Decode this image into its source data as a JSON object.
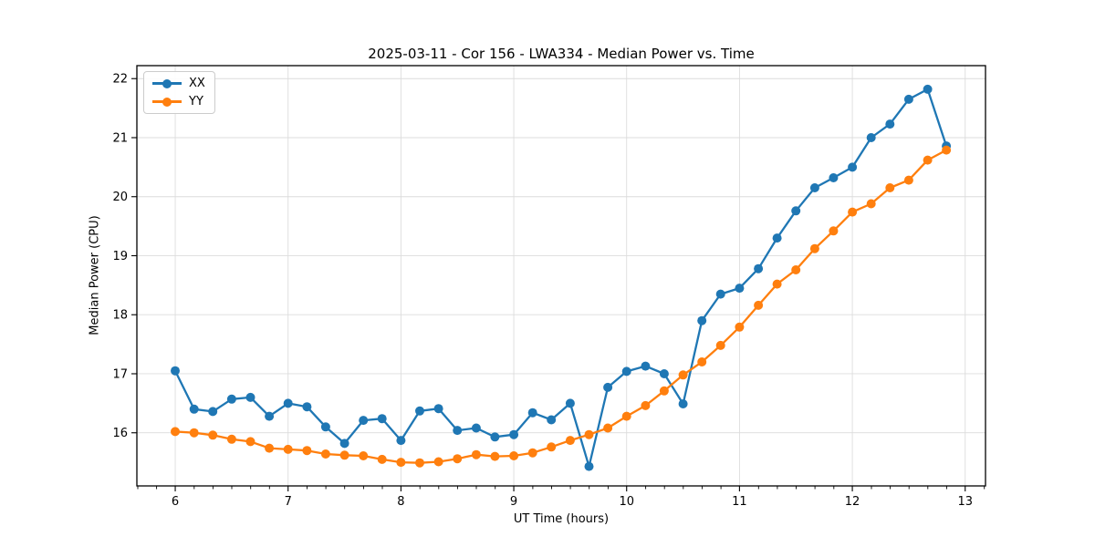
{
  "chart_data": {
    "type": "line",
    "title": "2025-03-11 - Cor 156 - LWA334 - Median Power vs. Time",
    "xlabel": "UT Time (hours)",
    "ylabel": "Median Power (CPU)",
    "grid": true,
    "grid_color": "#dcdcdc",
    "legend_position": "upper-left",
    "xlim": [
      5.66,
      13.18
    ],
    "ylim": [
      15.1,
      22.22
    ],
    "xticks": [
      6,
      7,
      8,
      9,
      10,
      11,
      12,
      13
    ],
    "yticks": [
      16,
      17,
      18,
      19,
      20,
      21,
      22
    ],
    "minor_xtick_step": 0.1667,
    "x": [
      6.0,
      6.167,
      6.333,
      6.5,
      6.667,
      6.833,
      7.0,
      7.167,
      7.333,
      7.5,
      7.667,
      7.833,
      8.0,
      8.167,
      8.333,
      8.5,
      8.667,
      8.833,
      9.0,
      9.167,
      9.333,
      9.5,
      9.667,
      9.833,
      10.0,
      10.167,
      10.333,
      10.5,
      10.667,
      10.833,
      11.0,
      11.167,
      11.333,
      11.5,
      11.667,
      11.833,
      12.0,
      12.167,
      12.333,
      12.5,
      12.667,
      12.833
    ],
    "series": [
      {
        "name": "XX",
        "color": "#1f77b4",
        "values": [
          17.05,
          16.4,
          16.36,
          16.57,
          16.6,
          16.28,
          16.5,
          16.44,
          16.1,
          15.82,
          16.21,
          16.24,
          15.87,
          16.37,
          16.41,
          16.04,
          16.08,
          15.93,
          15.97,
          16.34,
          16.22,
          16.5,
          15.43,
          16.77,
          17.04,
          17.13,
          17.0,
          16.49,
          17.9,
          18.35,
          18.45,
          18.78,
          19.3,
          19.76,
          20.15,
          20.32,
          20.5,
          21.0,
          21.23,
          21.65,
          21.82,
          20.86
        ]
      },
      {
        "name": "YY",
        "color": "#ff7f0e",
        "values": [
          16.02,
          16.0,
          15.96,
          15.89,
          15.85,
          15.74,
          15.72,
          15.7,
          15.64,
          15.62,
          15.61,
          15.55,
          15.5,
          15.49,
          15.51,
          15.56,
          15.63,
          15.6,
          15.61,
          15.66,
          15.76,
          15.87,
          15.97,
          16.08,
          16.28,
          16.46,
          16.71,
          16.98,
          17.2,
          17.48,
          17.79,
          18.16,
          18.52,
          18.76,
          19.12,
          19.42,
          19.74,
          19.88,
          20.15,
          20.28,
          20.62,
          20.79
        ]
      }
    ]
  }
}
